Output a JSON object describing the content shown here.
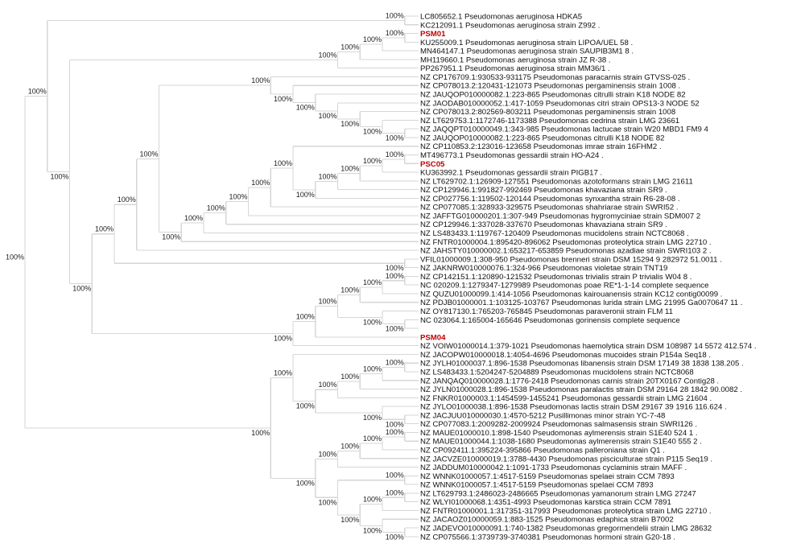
{
  "support_label": "100%",
  "colors": {
    "branch": "#d6d6d6",
    "highlight": "#c00000",
    "text": "#111111"
  },
  "leaves": [
    {
      "label": "LC805652.1 Pseudomonas aeruginosa HDKA5"
    },
    {
      "label": "KC212091.1 Pseudomonas aeruginosa strain Z992 ."
    },
    {
      "label": "PSM01",
      "highlight": true
    },
    {
      "label": "KU255009.1 Pseudomonas aeruginosa strain LIPOA/UEL 58 ."
    },
    {
      "label": "MN464147.1 Pseudomonas aeruginosa strain SAUPIB3M1 8 ."
    },
    {
      "label": "MH119660.1 Pseudomonas aeruginosa strain JZ R-38 ."
    },
    {
      "label": "PP267951.1 Pseudomonas aeruginosa strain MM36/1 ."
    },
    {
      "label": "NZ CP176709.1:930533-931175 Pseudomonas paracarnis strain GTVSS-025 ."
    },
    {
      "label": "NZ CP078013.2:120431-121073 Pseudomonas pergaminensis strain 1008 ."
    },
    {
      "label": "NZ JAUQOP010000082.1:223-865 Pseudomonas citrulli strain K18 NODE 82"
    },
    {
      "label": "NZ JAODAB010000052.1:417-1059 Pseudomonas citri strain OPS13-3 NODE 52"
    },
    {
      "label": "NZ CP078013.2:802569-803211 Pseudomonas pergaminensis strain 1008"
    },
    {
      "label": "NZ LT629753.1:1172746-1173388 Pseudomonas cedrina strain LMG 23661"
    },
    {
      "label": "NZ JAQQPT010000049.1:343-985 Pseudomonas lactucae strain W20 MBD1 FM9 4"
    },
    {
      "label": "NZ JAUQOP010000082.1:223-865 Pseudomonas citrulli K18 NODE 82"
    },
    {
      "label": "NZ CP110853.2:123016-123658 Pseudomonas imrae strain 16FHM2 ."
    },
    {
      "label": "MT496773.1 Pseudomonas gessardii strain HO-A24 ."
    },
    {
      "label": "PSC05",
      "highlight": true
    },
    {
      "label": "KU363992.1 Pseudomonas gessardii strain PIGB17 ."
    },
    {
      "label": "NZ LT629702.1:126909-127551 Pseudomonas azotoformans strain LMG 21611"
    },
    {
      "label": "NZ CP129946.1:991827-992469 Pseudomonas khavaziana strain SR9 ."
    },
    {
      "label": "NZ CP027756.1:119502-120144 Pseudomonas synxantha strain R6-28-08 ."
    },
    {
      "label": "NZ CP077085.1:328933-329575 Pseudomonas shahriarae strain SWRI52 ."
    },
    {
      "label": "NZ JAFFTG010000201.1:307-949 Pseudomonas hygromyciniae strain SDM007 2"
    },
    {
      "label": "NZ CP129946.1:337028-337670 Pseudomonas khavaziana strain SR9 ."
    },
    {
      "label": "NZ LS483433.1:119767-120409 Pseudomonas mucidolens strain NCTC8068 ."
    },
    {
      "label": "NZ FNTR01000004.1:895420-896062 Pseudomonas proteolytica strain LMG 22710 ."
    },
    {
      "label": "NZ JAHSTY010000002.1:653217-653859 Pseudomonas azadiae strain SWRI103 2 ."
    },
    {
      "label": "VFIL01000009.1:308-950 Pseudomonas brenneri strain DSM 15294 9 282972 51.0011 ."
    },
    {
      "label": "NZ JAKNRW010000076.1:324-966 Pseudomonas violetae strain TNT19"
    },
    {
      "label": "NZ CP142151.1:120890-121532 Pseudomonas trivialis strain P trivialis W04 8 ."
    },
    {
      "label": "NC 020209.1:1279347-1279989 Pseudomonas poae RE*1-1-14 complete sequence"
    },
    {
      "label": "NZ QUZU01000099.1:414-1056 Pseudomonas kairouanensis strain KC12 contig00099 ."
    },
    {
      "label": "NZ PDJB01000001.1:103125-103767 Pseudomonas lurida strain LMG 21995 Ga0070647 11 ."
    },
    {
      "label": "NZ OY817130.1:765203-765845 Pseudomonas paraveronii strain FLM 11"
    },
    {
      "label": "NC 023064.1:165004-165646 Pseudomonas gorinensis complete sequence"
    },
    {
      "label": ""
    },
    {
      "label": "PSM04",
      "highlight": true
    },
    {
      "label": "NZ VOIW01000014.1:379-1021 Pseudomonas haemolytica strain DSM 108987 14 5572 412.574 ."
    },
    {
      "label": "NZ JACOPW010000018.1:4054-4696 Pseudomonas mucoides strain P154a Seq18 ."
    },
    {
      "label": "NZ JYLH01000037.1:896-1538 Pseudomonas libanensis strain DSM 17149 38 1838 138.205 ."
    },
    {
      "label": "NZ LS483433.1:5204247-5204889 Pseudomonas mucidolens strain NCTC8068"
    },
    {
      "label": "NZ JANQAQ010000028.1:1776-2418 Pseudomonas carnis strain 20TX0167 Contig28 ."
    },
    {
      "label": "NZ JYLN01000028.1:896-1538 Pseudomonas paralactis strain DSM 29164 28 1842 90.0082 ."
    },
    {
      "label": "NZ FNKR01000003.1:1454599-1455241 Pseudomonas gessardii strain LMG 21604 ."
    },
    {
      "label": "NZ JYLO01000038.1:896-1538 Pseudomonas lactis strain DSM 29167 39 1916 116.624 ."
    },
    {
      "label": "NZ JACJUU010000030.1:4570-5212 Pusillimonas minor strain YC-7-48"
    },
    {
      "label": "NZ CP077083.1:2009282-2009924 Pseudomonas salmasensis strain SWRI126 ."
    },
    {
      "label": "NZ MAUE01000010.1:898-1540 Pseudomonas aylmerensis strain S1E40 524 1 ."
    },
    {
      "label": "NZ MAUE01000044.1:1038-1680 Pseudomonas aylmerensis strain S1E40 555 2 ."
    },
    {
      "label": "NZ CP092411.1:395224-395866 Pseudomonas palleroniana strain Q1 ."
    },
    {
      "label": "NZ JACVZE010000019.1:3788-4430 Pseudomonas pisciculturae strain P115 Seq19 ."
    },
    {
      "label": "NZ JADDUM010000042.1:1091-1733 Pseudomonas cyclaminis strain MAFF ."
    },
    {
      "label": "NZ WNNK01000057.1:4517-5159 Pseudomonas spelaei strain CCM 7893"
    },
    {
      "label": "NZ WNNK01000057.1:4517-5159 Pseudomonas spelaei CCM 7893"
    },
    {
      "label": "NZ LT629793.1:2486023-2486665 Pseudomonas yamanorum strain LMG 27247"
    },
    {
      "label": "NZ WLYI01000068.1:4351-4993 Pseudomonas karstica strain CCM 7891"
    },
    {
      "label": "NZ FNTR01000001.1:317351-317993 Pseudomonas proteolytica strain LMG 22710 ."
    },
    {
      "label": "NZ JACAOZ010000059.1:883-1525 Pseudomonas edaphica strain B7002"
    },
    {
      "label": "NZ JADEVO010000091.1:740-1382 Pseudomonas gregormendelii strain LMG 28632"
    },
    {
      "label": "NZ CP075566.1:3739739-3740381 Pseudomonas hormoni strain G20-18 ."
    }
  ],
  "tree": [
    [
      [
        0,
        1
      ],
      [
        [
          [
            [
              [
                2,
                3
              ],
              4
            ],
            5
          ],
          6
        ],
        [
          [
            [
              [
                [
                  7,
                  [
                    8,
                    [
                      9,
                      [
                        10,
                        [
                          11,
                          [
                            12,
                            [
                              13,
                              14
                            ]
                          ]
                        ]
                      ]
                    ]
                  ]
                ],
                [
                  [
                    [
                      [
                        [
                          [
                            15,
                            [
                              [
                                [
                                  [
                                    [
                                      16,
                                      17
                                    ],
                                    18
                                  ],
                                  19
                                ],
                                20
                              ],
                              21
                            ]
                          ],
                          22
                        ],
                        23
                      ],
                      24
                    ],
                    25
                  ],
                  26
                ]
              ],
              27
            ],
            [
              28,
              29
            ]
          ],
          [
            [
              [
                [
                  [
                    [
                      30,
                      31
                    ],
                    32
                  ],
                  33
                ],
                [
                  34,
                  [
                    35,
                    36
                  ]
                ]
              ],
              37
            ],
            38
          ]
        ]
      ]
    ],
    [
      [
        39,
        [
          [
            [
              [
                [
                  40,
                  41
                ],
                42
              ],
              43
            ],
            44
          ],
          [
            45,
            [
              46,
              47
            ]
          ]
        ]
      ],
      [
        [
          [
            [
              [
                48,
                49
              ],
              50
            ],
            51
          ],
          52
        ],
        [
          [
            53,
            54
          ],
          [
            [
              [
                55,
                56
              ],
              57
            ],
            [
              58,
              [
                59,
                60
              ]
            ]
          ]
        ]
      ]
    ]
  ]
}
